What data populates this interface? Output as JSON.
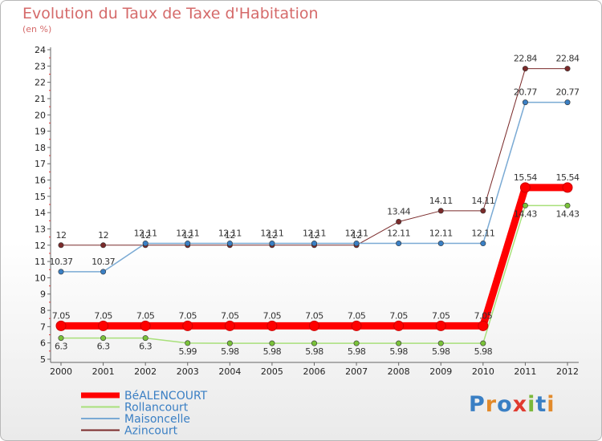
{
  "title": "Evolution du Taux de Taxe d'Habitation",
  "subtitle": "(en %)",
  "logo": {
    "text": "Proxiti",
    "letter_colors": [
      "#3a7fc4",
      "#e28a2b",
      "#3a7fc4",
      "#e03a2f",
      "#7ab83a",
      "#3a7fc4",
      "#e28a2b"
    ]
  },
  "chart_data": {
    "type": "line",
    "title": "Evolution du Taux de Taxe d'Habitation",
    "ylabel": "(en %)",
    "xlabel": "",
    "x": [
      "2000",
      "2001",
      "2002",
      "2003",
      "2004",
      "2005",
      "2006",
      "2007",
      "2008",
      "2009",
      "2010",
      "2011",
      "2012"
    ],
    "ylim": [
      5,
      24
    ],
    "yticks": [
      "5",
      "6",
      "7",
      "8",
      "9",
      "10",
      "11",
      "12",
      "13",
      "14",
      "15",
      "16",
      "17",
      "18",
      "19",
      "20",
      "21",
      "22",
      "23",
      "24"
    ],
    "grid": false,
    "legend_position": "bottom-left",
    "series": [
      {
        "name": "Azincourt",
        "color": "#7a2a2a",
        "line_width": 1,
        "values": [
          12,
          12,
          12,
          12,
          12,
          12,
          12,
          12,
          13.44,
          14.11,
          14.11,
          22.84,
          22.84
        ],
        "labels": [
          "12",
          "12",
          "12",
          "12",
          "12",
          "12",
          "12",
          "12",
          "13.44",
          "14.11",
          "14.11",
          "22.84",
          "22.84"
        ]
      },
      {
        "name": "Maisoncelle",
        "color": "#7aaad4",
        "marker_color": "#3a7fc4",
        "line_width": 1.5,
        "values": [
          10.37,
          10.37,
          12.11,
          12.11,
          12.11,
          12.11,
          12.11,
          12.11,
          12.11,
          12.11,
          12.11,
          20.77,
          20.77
        ],
        "labels": [
          "10.37",
          "10.37",
          "12.11",
          "12.11",
          "12.11",
          "12.11",
          "12.11",
          "12.11",
          "12.11",
          "12.11",
          "12.11",
          "20.77",
          "20.77"
        ]
      },
      {
        "name": "Rollancourt",
        "color": "#a8e07a",
        "marker_color": "#7ac23a",
        "line_width": 1.5,
        "values": [
          6.3,
          6.3,
          6.3,
          5.99,
          5.98,
          5.98,
          5.98,
          5.98,
          5.98,
          5.98,
          5.98,
          14.43,
          14.43
        ],
        "labels": [
          "6.3",
          "6.3",
          "6.3",
          "5.99",
          "5.98",
          "5.98",
          "5.98",
          "5.98",
          "5.98",
          "5.98",
          "5.98",
          "14.43",
          "14.43"
        ]
      },
      {
        "name": "BéALENCOURT",
        "color": "#ff0000",
        "line_width": 9,
        "values": [
          7.05,
          7.05,
          7.05,
          7.05,
          7.05,
          7.05,
          7.05,
          7.05,
          7.05,
          7.05,
          7.05,
          15.54,
          15.54
        ],
        "labels": [
          "7.05",
          "7.05",
          "7.05",
          "7.05",
          "7.05",
          "7.05",
          "7.05",
          "7.05",
          "7.05",
          "7.05",
          "7.05",
          "15.54",
          "15.54"
        ]
      }
    ],
    "legend": [
      "BéALENCOURT",
      "Maisoncelle",
      "Rollancourt",
      "Azincourt"
    ]
  }
}
